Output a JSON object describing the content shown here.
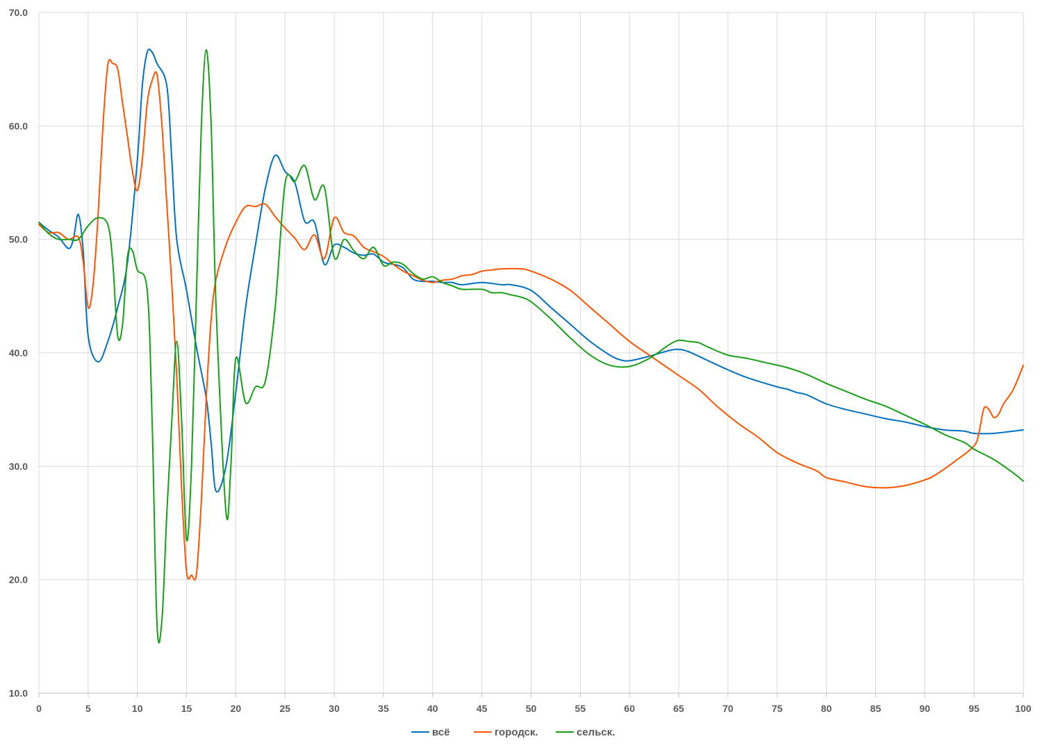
{
  "chart_data": {
    "type": "line",
    "title": "",
    "xlabel": "",
    "ylabel": "",
    "xlim": [
      0,
      100
    ],
    "ylim": [
      10,
      70
    ],
    "x_ticks": [
      "0",
      "5",
      "10",
      "15",
      "20",
      "25",
      "30",
      "35",
      "40",
      "45",
      "50",
      "55",
      "60",
      "65",
      "70",
      "75",
      "80",
      "85",
      "90",
      "95",
      "100"
    ],
    "y_ticks": [
      "10.0",
      "20.0",
      "30.0",
      "40.0",
      "50.0",
      "60.0",
      "70.0"
    ],
    "grid": true,
    "legend_position": "bottom",
    "series": [
      {
        "name": "всё",
        "color": "#0070C0",
        "points": [
          [
            0,
            51.5
          ],
          [
            1,
            50.8
          ],
          [
            2,
            50.2
          ],
          [
            3,
            49.2
          ],
          [
            3.5,
            50
          ],
          [
            4,
            52.2
          ],
          [
            4.5,
            49
          ],
          [
            5,
            41.5
          ],
          [
            6,
            39.2
          ],
          [
            7,
            41
          ],
          [
            8,
            44
          ],
          [
            9,
            48
          ],
          [
            10,
            57
          ],
          [
            10.5,
            63.5
          ],
          [
            11,
            66.5
          ],
          [
            11.5,
            66.5
          ],
          [
            12,
            65.5
          ],
          [
            13,
            63.5
          ],
          [
            13.5,
            57
          ],
          [
            14,
            50
          ],
          [
            15,
            45.5
          ],
          [
            16,
            40.5
          ],
          [
            17,
            36
          ],
          [
            17.5,
            32
          ],
          [
            18,
            27.8
          ],
          [
            19,
            30
          ],
          [
            20,
            36.5
          ],
          [
            21,
            44
          ],
          [
            22,
            49.5
          ],
          [
            23,
            54.5
          ],
          [
            24,
            57.4
          ],
          [
            25,
            56
          ],
          [
            26,
            55
          ],
          [
            27,
            51.6
          ],
          [
            28,
            51.5
          ],
          [
            29,
            47.8
          ],
          [
            30,
            49.5
          ],
          [
            31,
            49.3
          ],
          [
            32,
            48.8
          ],
          [
            33,
            48.6
          ],
          [
            34,
            48.7
          ],
          [
            35,
            48
          ],
          [
            36,
            47.8
          ],
          [
            37,
            47.5
          ],
          [
            38,
            46.5
          ],
          [
            39,
            46.3
          ],
          [
            40,
            46.3
          ],
          [
            41,
            46.2
          ],
          [
            42,
            46.2
          ],
          [
            43,
            46
          ],
          [
            45,
            46.2
          ],
          [
            47,
            46
          ],
          [
            48,
            46
          ],
          [
            50,
            45.5
          ],
          [
            52,
            44
          ],
          [
            54,
            42.5
          ],
          [
            56,
            41
          ],
          [
            58,
            39.8
          ],
          [
            59,
            39.4
          ],
          [
            60,
            39.3
          ],
          [
            62,
            39.7
          ],
          [
            64,
            40.2
          ],
          [
            65,
            40.3
          ],
          [
            66,
            40.1
          ],
          [
            68,
            39.3
          ],
          [
            70,
            38.5
          ],
          [
            72,
            37.8
          ],
          [
            75,
            37
          ],
          [
            76,
            36.8
          ],
          [
            77,
            36.5
          ],
          [
            78,
            36.3
          ],
          [
            80,
            35.5
          ],
          [
            82,
            35
          ],
          [
            84,
            34.6
          ],
          [
            86,
            34.2
          ],
          [
            88,
            33.9
          ],
          [
            90,
            33.5
          ],
          [
            92,
            33.2
          ],
          [
            94,
            33.1
          ],
          [
            95,
            32.9
          ],
          [
            97,
            32.9
          ],
          [
            99,
            33.1
          ],
          [
            100,
            33.2
          ]
        ]
      },
      {
        "name": "городск.",
        "color": "#FF5500",
        "points": [
          [
            0,
            51.3
          ],
          [
            1,
            50.6
          ],
          [
            2,
            50.6
          ],
          [
            3,
            50
          ],
          [
            4,
            50.2
          ],
          [
            4.5,
            48
          ],
          [
            5,
            44
          ],
          [
            5.5,
            46
          ],
          [
            6,
            52
          ],
          [
            6.5,
            60
          ],
          [
            7,
            65.4
          ],
          [
            7.5,
            65.5
          ],
          [
            8,
            65
          ],
          [
            8.5,
            62
          ],
          [
            9,
            59
          ],
          [
            9.5,
            56
          ],
          [
            10,
            54.3
          ],
          [
            10.5,
            57
          ],
          [
            11,
            62
          ],
          [
            11.5,
            64
          ],
          [
            12,
            64.5
          ],
          [
            12.5,
            60
          ],
          [
            13,
            53
          ],
          [
            13.5,
            46
          ],
          [
            14,
            38
          ],
          [
            14.5,
            28
          ],
          [
            15,
            20.7
          ],
          [
            15.5,
            20.4
          ],
          [
            16,
            20.5
          ],
          [
            16.5,
            27
          ],
          [
            17,
            36
          ],
          [
            17.5,
            43
          ],
          [
            18,
            46.5
          ],
          [
            19,
            49.5
          ],
          [
            20,
            51.5
          ],
          [
            21,
            52.9
          ],
          [
            22,
            52.9
          ],
          [
            23,
            53.1
          ],
          [
            24,
            52
          ],
          [
            25,
            51
          ],
          [
            26,
            50.1
          ],
          [
            27,
            49.1
          ],
          [
            28,
            50.4
          ],
          [
            29,
            48.3
          ],
          [
            30,
            51.9
          ],
          [
            31,
            50.6
          ],
          [
            32,
            50.3
          ],
          [
            33,
            49.3
          ],
          [
            34,
            48.9
          ],
          [
            35,
            48.5
          ],
          [
            36,
            47.8
          ],
          [
            37,
            47.2
          ],
          [
            38,
            46.8
          ],
          [
            39,
            46.4
          ],
          [
            40,
            46.2
          ],
          [
            41,
            46.4
          ],
          [
            42,
            46.5
          ],
          [
            43,
            46.8
          ],
          [
            44,
            46.9
          ],
          [
            45,
            47.2
          ],
          [
            46,
            47.3
          ],
          [
            47,
            47.4
          ],
          [
            49,
            47.4
          ],
          [
            50,
            47.2
          ],
          [
            52,
            46.5
          ],
          [
            54,
            45.5
          ],
          [
            56,
            44
          ],
          [
            58,
            42.5
          ],
          [
            60,
            41
          ],
          [
            62,
            39.8
          ],
          [
            64,
            38.6
          ],
          [
            65,
            38
          ],
          [
            67,
            36.8
          ],
          [
            69,
            35.2
          ],
          [
            71,
            33.8
          ],
          [
            73,
            32.6
          ],
          [
            75,
            31.2
          ],
          [
            77,
            30.3
          ],
          [
            79,
            29.6
          ],
          [
            80,
            29
          ],
          [
            82,
            28.6
          ],
          [
            84,
            28.2
          ],
          [
            86,
            28.1
          ],
          [
            88,
            28.3
          ],
          [
            90,
            28.8
          ],
          [
            91,
            29.2
          ],
          [
            93,
            30.4
          ],
          [
            95,
            31.8
          ],
          [
            95.5,
            33
          ],
          [
            96,
            35.1
          ],
          [
            96.5,
            35
          ],
          [
            97,
            34.3
          ],
          [
            97.5,
            34.6
          ],
          [
            98,
            35.5
          ],
          [
            99,
            36.8
          ],
          [
            100,
            38.9
          ]
        ]
      },
      {
        "name": "сельск.",
        "color": "#17A017",
        "points": [
          [
            0,
            51.5
          ],
          [
            1,
            50.5
          ],
          [
            2,
            50
          ],
          [
            3,
            50
          ],
          [
            4,
            50
          ],
          [
            5,
            51.2
          ],
          [
            6,
            51.9
          ],
          [
            7,
            51.3
          ],
          [
            7.5,
            48
          ],
          [
            8,
            41.5
          ],
          [
            8.5,
            42.5
          ],
          [
            9,
            48.5
          ],
          [
            9.5,
            49
          ],
          [
            10,
            47.3
          ],
          [
            11,
            45.5
          ],
          [
            11.5,
            34
          ],
          [
            12,
            16
          ],
          [
            12.5,
            16.5
          ],
          [
            13,
            26
          ],
          [
            13.5,
            34
          ],
          [
            14,
            41
          ],
          [
            14.5,
            34
          ],
          [
            15,
            23.5
          ],
          [
            15.5,
            30
          ],
          [
            16,
            45
          ],
          [
            16.5,
            60
          ],
          [
            17,
            66.7
          ],
          [
            17.5,
            60
          ],
          [
            18,
            44
          ],
          [
            19,
            26
          ],
          [
            19.5,
            30
          ],
          [
            20,
            39.5
          ],
          [
            21,
            35.6
          ],
          [
            22,
            37
          ],
          [
            23,
            37.5
          ],
          [
            24,
            44
          ],
          [
            25,
            54.9
          ],
          [
            26,
            55.1
          ],
          [
            27,
            56.5
          ],
          [
            28,
            53.5
          ],
          [
            29,
            54.6
          ],
          [
            30,
            48.4
          ],
          [
            31,
            50
          ],
          [
            32,
            49
          ],
          [
            33,
            48.3
          ],
          [
            34,
            49.3
          ],
          [
            35,
            47.7
          ],
          [
            36,
            48
          ],
          [
            37,
            47.8
          ],
          [
            38,
            47
          ],
          [
            39,
            46.5
          ],
          [
            40,
            46.7
          ],
          [
            41,
            46.2
          ],
          [
            42,
            45.9
          ],
          [
            43,
            45.6
          ],
          [
            45,
            45.6
          ],
          [
            46,
            45.3
          ],
          [
            47,
            45.3
          ],
          [
            48,
            45.1
          ],
          [
            49,
            44.9
          ],
          [
            50,
            44.5
          ],
          [
            52,
            43
          ],
          [
            54,
            41.3
          ],
          [
            56,
            39.8
          ],
          [
            58,
            38.9
          ],
          [
            60,
            38.8
          ],
          [
            62,
            39.5
          ],
          [
            64,
            40.7
          ],
          [
            65,
            41.1
          ],
          [
            66,
            41.0
          ],
          [
            67,
            40.9
          ],
          [
            68,
            40.5
          ],
          [
            70,
            39.8
          ],
          [
            72,
            39.5
          ],
          [
            74,
            39.1
          ],
          [
            76,
            38.7
          ],
          [
            78,
            38.1
          ],
          [
            80,
            37.3
          ],
          [
            82,
            36.6
          ],
          [
            84,
            35.9
          ],
          [
            86,
            35.3
          ],
          [
            88,
            34.5
          ],
          [
            90,
            33.7
          ],
          [
            92,
            32.8
          ],
          [
            94,
            32.1
          ],
          [
            95,
            31.5
          ],
          [
            97,
            30.6
          ],
          [
            99,
            29.4
          ],
          [
            100,
            28.7
          ]
        ]
      }
    ]
  }
}
